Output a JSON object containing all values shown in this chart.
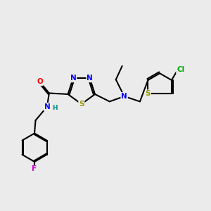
{
  "background_color": "#ebebeb",
  "bond_color": "#000000",
  "fig_width": 3.0,
  "fig_height": 3.0,
  "dpi": 100,
  "atom_colors": {
    "N": "#0000ff",
    "O": "#ff0000",
    "S": "#999900",
    "F": "#cc00cc",
    "Cl": "#00aa00",
    "H": "#009090"
  }
}
